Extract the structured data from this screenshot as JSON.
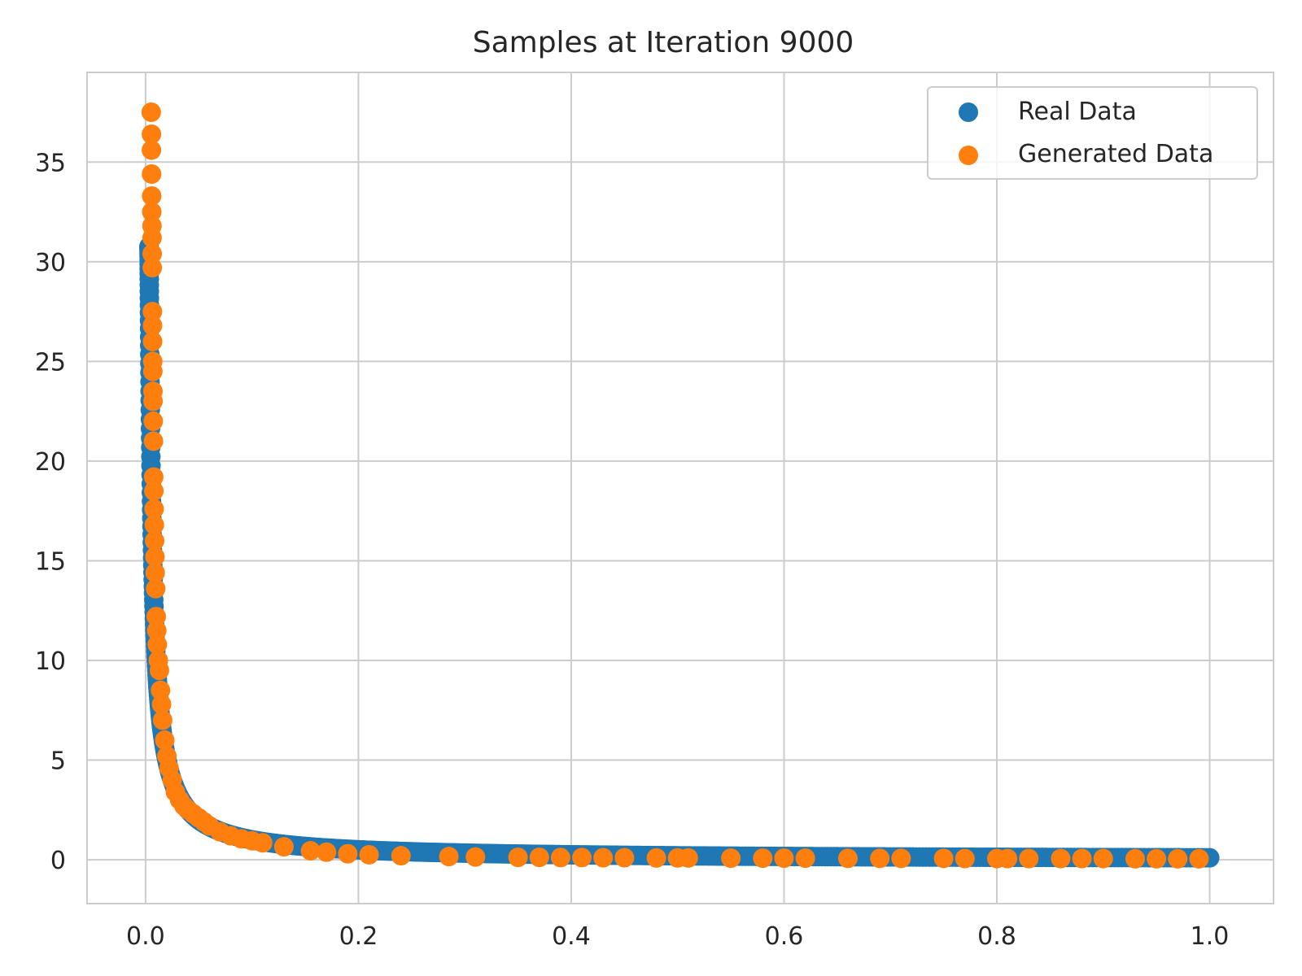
{
  "chart_data": {
    "type": "scatter",
    "title": "Samples at Iteration 9000",
    "xlabel": "",
    "ylabel": "",
    "xlim": [
      -0.055,
      1.06
    ],
    "ylim": [
      -2.2,
      39.5
    ],
    "x_ticks": [
      0.0,
      0.2,
      0.4,
      0.6,
      0.8,
      1.0
    ],
    "x_tick_labels": [
      "0.0",
      "0.2",
      "0.4",
      "0.6",
      "0.8",
      "1.0"
    ],
    "y_ticks": [
      0,
      5,
      10,
      15,
      20,
      25,
      30,
      35
    ],
    "y_tick_labels": [
      "0",
      "5",
      "10",
      "15",
      "20",
      "25",
      "30",
      "35"
    ],
    "grid": true,
    "legend_position": "top-right",
    "series": [
      {
        "name": "Real Data",
        "color": "#1f77b4",
        "marker": "circle",
        "curve": "y = 0.1/x",
        "x_range": [
          0.00325,
          1.0
        ],
        "n_points": 600
      },
      {
        "name": "Generated Data",
        "color": "#ff7f0e",
        "marker": "circle",
        "x": [
          0.0053,
          0.0055,
          0.0055,
          0.0056,
          0.0057,
          0.0058,
          0.006,
          0.0061,
          0.0062,
          0.0063,
          0.0064,
          0.0065,
          0.0066,
          0.0067,
          0.0068,
          0.0069,
          0.007,
          0.0072,
          0.0074,
          0.0076,
          0.0078,
          0.008,
          0.0082,
          0.0085,
          0.0088,
          0.009,
          0.0095,
          0.01,
          0.0105,
          0.011,
          0.012,
          0.013,
          0.014,
          0.015,
          0.016,
          0.018,
          0.02,
          0.022,
          0.025,
          0.028,
          0.032,
          0.036,
          0.04,
          0.045,
          0.05,
          0.055,
          0.06,
          0.07,
          0.08,
          0.09,
          0.1,
          0.11,
          0.13,
          0.155,
          0.17,
          0.19,
          0.21,
          0.24,
          0.285,
          0.31,
          0.35,
          0.37,
          0.39,
          0.41,
          0.43,
          0.45,
          0.48,
          0.5,
          0.51,
          0.55,
          0.58,
          0.6,
          0.62,
          0.66,
          0.69,
          0.71,
          0.75,
          0.77,
          0.8,
          0.81,
          0.83,
          0.86,
          0.88,
          0.9,
          0.93,
          0.95,
          0.97,
          0.99
        ],
        "y": [
          37.5,
          36.4,
          35.6,
          34.4,
          33.3,
          32.5,
          31.8,
          31.2,
          30.4,
          29.7,
          27.5,
          26.8,
          26.0,
          25.0,
          24.5,
          23.5,
          23.0,
          22.0,
          21.0,
          19.2,
          18.5,
          17.6,
          16.8,
          16.0,
          15.2,
          14.4,
          13.6,
          12.2,
          11.5,
          10.8,
          10.0,
          9.5,
          8.5,
          7.8,
          7.0,
          6.0,
          5.2,
          4.6,
          4.0,
          3.4,
          3.0,
          2.7,
          2.5,
          2.3,
          2.1,
          1.9,
          1.7,
          1.4,
          1.2,
          1.05,
          0.95,
          0.85,
          0.65,
          0.45,
          0.38,
          0.3,
          0.25,
          0.2,
          0.16,
          0.14,
          0.12,
          0.12,
          0.11,
          0.11,
          0.1,
          0.1,
          0.09,
          0.09,
          0.09,
          0.08,
          0.08,
          0.08,
          0.08,
          0.07,
          0.07,
          0.07,
          0.07,
          0.06,
          0.06,
          0.06,
          0.06,
          0.06,
          0.06,
          0.06,
          0.05,
          0.05,
          0.05,
          0.05
        ]
      }
    ]
  }
}
